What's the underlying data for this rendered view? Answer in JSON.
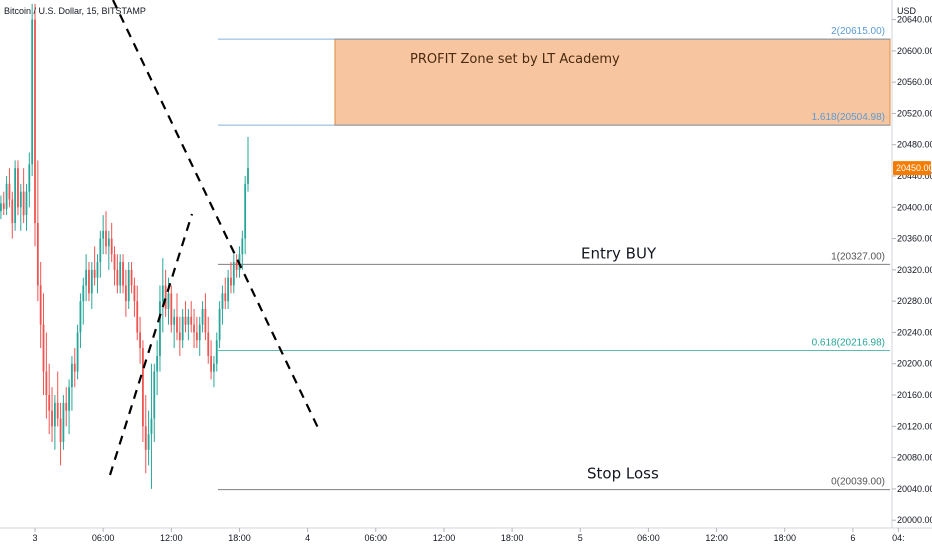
{
  "header": {
    "symbol_title": "Bitcoin / U.S. Dollar, 15, BITSTAMP",
    "currency": "USD"
  },
  "chart_data": {
    "type": "candlestick",
    "title": "Bitcoin / U.S. Dollar, 15, BITSTAMP",
    "ylabel": "USD",
    "ylim": [
      19990,
      20665
    ],
    "y_ticks": [
      20000,
      20040,
      20080,
      20120,
      20160,
      20200,
      20240,
      20280,
      20320,
      20360,
      20400,
      20440,
      20480,
      20520,
      20560,
      20600,
      20640
    ],
    "y_tick_labels": [
      "20000.00",
      "20040.00",
      "20080.00",
      "20120.00",
      "20160.00",
      "20200.00",
      "20240.00",
      "20280.00",
      "20320.00",
      "20360.00",
      "20400.00",
      "20440.00",
      "20480.00",
      "20520.00",
      "20560.00",
      "20600.00",
      "20640.00"
    ],
    "x_ticks": [
      {
        "label": "3",
        "t": 0
      },
      {
        "label": "06:00",
        "t": 24
      },
      {
        "label": "12:00",
        "t": 48
      },
      {
        "label": "18:00",
        "t": 72
      },
      {
        "label": "4",
        "t": 96
      },
      {
        "label": "06:00",
        "t": 120
      },
      {
        "label": "12:00",
        "t": 144
      },
      {
        "label": "18:00",
        "t": 168
      },
      {
        "label": "5",
        "t": 192
      },
      {
        "label": "06:00",
        "t": 216
      },
      {
        "label": "12:00",
        "t": 240
      },
      {
        "label": "18:00",
        "t": 264
      },
      {
        "label": "6",
        "t": 288
      },
      {
        "label": "04:",
        "t": 304
      }
    ],
    "last_price": {
      "value": 20450.0,
      "label": "20450.00",
      "color": "#f57c00"
    },
    "candle_colors": {
      "up": "#26a69a",
      "down": "#ef5350"
    },
    "candles": [
      [
        -12,
        20395,
        20415,
        20385,
        20405
      ],
      [
        -11,
        20405,
        20420,
        20390,
        20398
      ],
      [
        -10,
        20398,
        20440,
        20390,
        20430
      ],
      [
        -9,
        20430,
        20450,
        20400,
        20410
      ],
      [
        -8,
        20410,
        20420,
        20360,
        20380
      ],
      [
        -7,
        20380,
        20460,
        20370,
        20450
      ],
      [
        -6,
        20450,
        20460,
        20390,
        20400
      ],
      [
        -5,
        20400,
        20430,
        20370,
        20420
      ],
      [
        -4,
        20420,
        20450,
        20380,
        20390
      ],
      [
        -3,
        20390,
        20430,
        20370,
        20420
      ],
      [
        -2,
        20420,
        20470,
        20400,
        20455
      ],
      [
        -1,
        20455,
        20660,
        20440,
        20640
      ],
      [
        0,
        20640,
        20660,
        20350,
        20380
      ],
      [
        1,
        20380,
        20460,
        20280,
        20300
      ],
      [
        2,
        20300,
        20330,
        20220,
        20250
      ],
      [
        3,
        20250,
        20290,
        20160,
        20190
      ],
      [
        4,
        20190,
        20240,
        20130,
        20160
      ],
      [
        5,
        20160,
        20200,
        20110,
        20140
      ],
      [
        6,
        20140,
        20170,
        20100,
        20120
      ],
      [
        7,
        20120,
        20160,
        20090,
        20150
      ],
      [
        8,
        20150,
        20190,
        20120,
        20130
      ],
      [
        9,
        20130,
        20150,
        20070,
        20100
      ],
      [
        10,
        20100,
        20160,
        20090,
        20150
      ],
      [
        11,
        20150,
        20170,
        20120,
        20140
      ],
      [
        12,
        20140,
        20180,
        20110,
        20170
      ],
      [
        13,
        20170,
        20210,
        20140,
        20200
      ],
      [
        14,
        20200,
        20220,
        20170,
        20190
      ],
      [
        15,
        20190,
        20250,
        20180,
        20240
      ],
      [
        16,
        20240,
        20290,
        20220,
        20280
      ],
      [
        17,
        20280,
        20310,
        20250,
        20300
      ],
      [
        18,
        20300,
        20340,
        20280,
        20320
      ],
      [
        19,
        20320,
        20330,
        20280,
        20290
      ],
      [
        20,
        20290,
        20330,
        20270,
        20320
      ],
      [
        21,
        20320,
        20350,
        20300,
        20310
      ],
      [
        22,
        20310,
        20340,
        20290,
        20330
      ],
      [
        23,
        20330,
        20370,
        20310,
        20360
      ],
      [
        24,
        20360,
        20390,
        20340,
        20370
      ],
      [
        25,
        20370,
        20395,
        20340,
        20350
      ],
      [
        26,
        20350,
        20370,
        20320,
        20360
      ],
      [
        27,
        20360,
        20380,
        20330,
        20340
      ],
      [
        28,
        20340,
        20350,
        20300,
        20320
      ],
      [
        29,
        20320,
        20340,
        20290,
        20300
      ],
      [
        30,
        20300,
        20340,
        20290,
        20330
      ],
      [
        31,
        20330,
        20340,
        20290,
        20300
      ],
      [
        32,
        20300,
        20320,
        20260,
        20280
      ],
      [
        33,
        20280,
        20330,
        20270,
        20320
      ],
      [
        34,
        20320,
        20330,
        20290,
        20300
      ],
      [
        35,
        20300,
        20310,
        20260,
        20280
      ],
      [
        36,
        20280,
        20300,
        20230,
        20240
      ],
      [
        37,
        20240,
        20260,
        20200,
        20220
      ],
      [
        38,
        20220,
        20230,
        20100,
        20120
      ],
      [
        39,
        20120,
        20160,
        20060,
        20090
      ],
      [
        40,
        20090,
        20140,
        20070,
        20110
      ],
      [
        41,
        20110,
        20200,
        20040,
        20130
      ],
      [
        42,
        20130,
        20200,
        20100,
        20190
      ],
      [
        43,
        20190,
        20230,
        20160,
        20210
      ],
      [
        44,
        20210,
        20300,
        20190,
        20280
      ],
      [
        45,
        20280,
        20335,
        20240,
        20300
      ],
      [
        46,
        20300,
        20320,
        20260,
        20270
      ],
      [
        47,
        20270,
        20310,
        20250,
        20290
      ],
      [
        48,
        20290,
        20300,
        20240,
        20250
      ],
      [
        49,
        20250,
        20270,
        20220,
        20260
      ],
      [
        50,
        20260,
        20290,
        20230,
        20240
      ],
      [
        51,
        20240,
        20260,
        20210,
        20230
      ],
      [
        52,
        20230,
        20270,
        20220,
        20260
      ],
      [
        53,
        20260,
        20280,
        20240,
        20250
      ],
      [
        54,
        20250,
        20270,
        20230,
        20260
      ],
      [
        55,
        20260,
        20280,
        20240,
        20250
      ],
      [
        56,
        20250,
        20270,
        20220,
        20240
      ],
      [
        57,
        20240,
        20260,
        20220,
        20230
      ],
      [
        58,
        20230,
        20260,
        20210,
        20250
      ],
      [
        59,
        20250,
        20280,
        20240,
        20270
      ],
      [
        60,
        20270,
        20290,
        20230,
        20240
      ],
      [
        61,
        20240,
        20260,
        20200,
        20210
      ],
      [
        62,
        20210,
        20230,
        20180,
        20190
      ],
      [
        63,
        20190,
        20210,
        20170,
        20200
      ],
      [
        64,
        20200,
        20240,
        20190,
        20230
      ],
      [
        65,
        20230,
        20280,
        20220,
        20270
      ],
      [
        66,
        20270,
        20300,
        20250,
        20290
      ],
      [
        67,
        20290,
        20310,
        20270,
        20280
      ],
      [
        68,
        20280,
        20320,
        20270,
        20310
      ],
      [
        69,
        20310,
        20330,
        20290,
        20300
      ],
      [
        70,
        20300,
        20340,
        20290,
        20330
      ],
      [
        71,
        20330,
        20340,
        20310,
        20320
      ],
      [
        72,
        20320,
        20350,
        20310,
        20340
      ],
      [
        73,
        20340,
        20370,
        20320,
        20360
      ],
      [
        74,
        20360,
        20440,
        20340,
        20430
      ],
      [
        75,
        20430,
        20490,
        20420,
        20450
      ]
    ]
  },
  "fib_levels": [
    {
      "label": "2(20615.00)",
      "value": 20615.0,
      "color": "#5b9bd5"
    },
    {
      "label": "1.618(20504.98)",
      "value": 20504.98,
      "color": "#5b9bd5"
    },
    {
      "label": "1(20327.00)",
      "value": 20327.0,
      "color": "#555555"
    },
    {
      "label": "0.618(20216.98)",
      "value": 20216.98,
      "color": "#26a69a"
    },
    {
      "label": "0(20039.00)",
      "value": 20039.0,
      "color": "#555555"
    }
  ],
  "annotations": {
    "profit_zone": {
      "text": "PROFIT Zone set by LT Academy",
      "top": 20615.0,
      "bottom": 20504.98,
      "fill": "#f7c59f"
    },
    "entry": {
      "text": "Entry BUY"
    },
    "stop": {
      "text": "Stop Loss"
    }
  }
}
